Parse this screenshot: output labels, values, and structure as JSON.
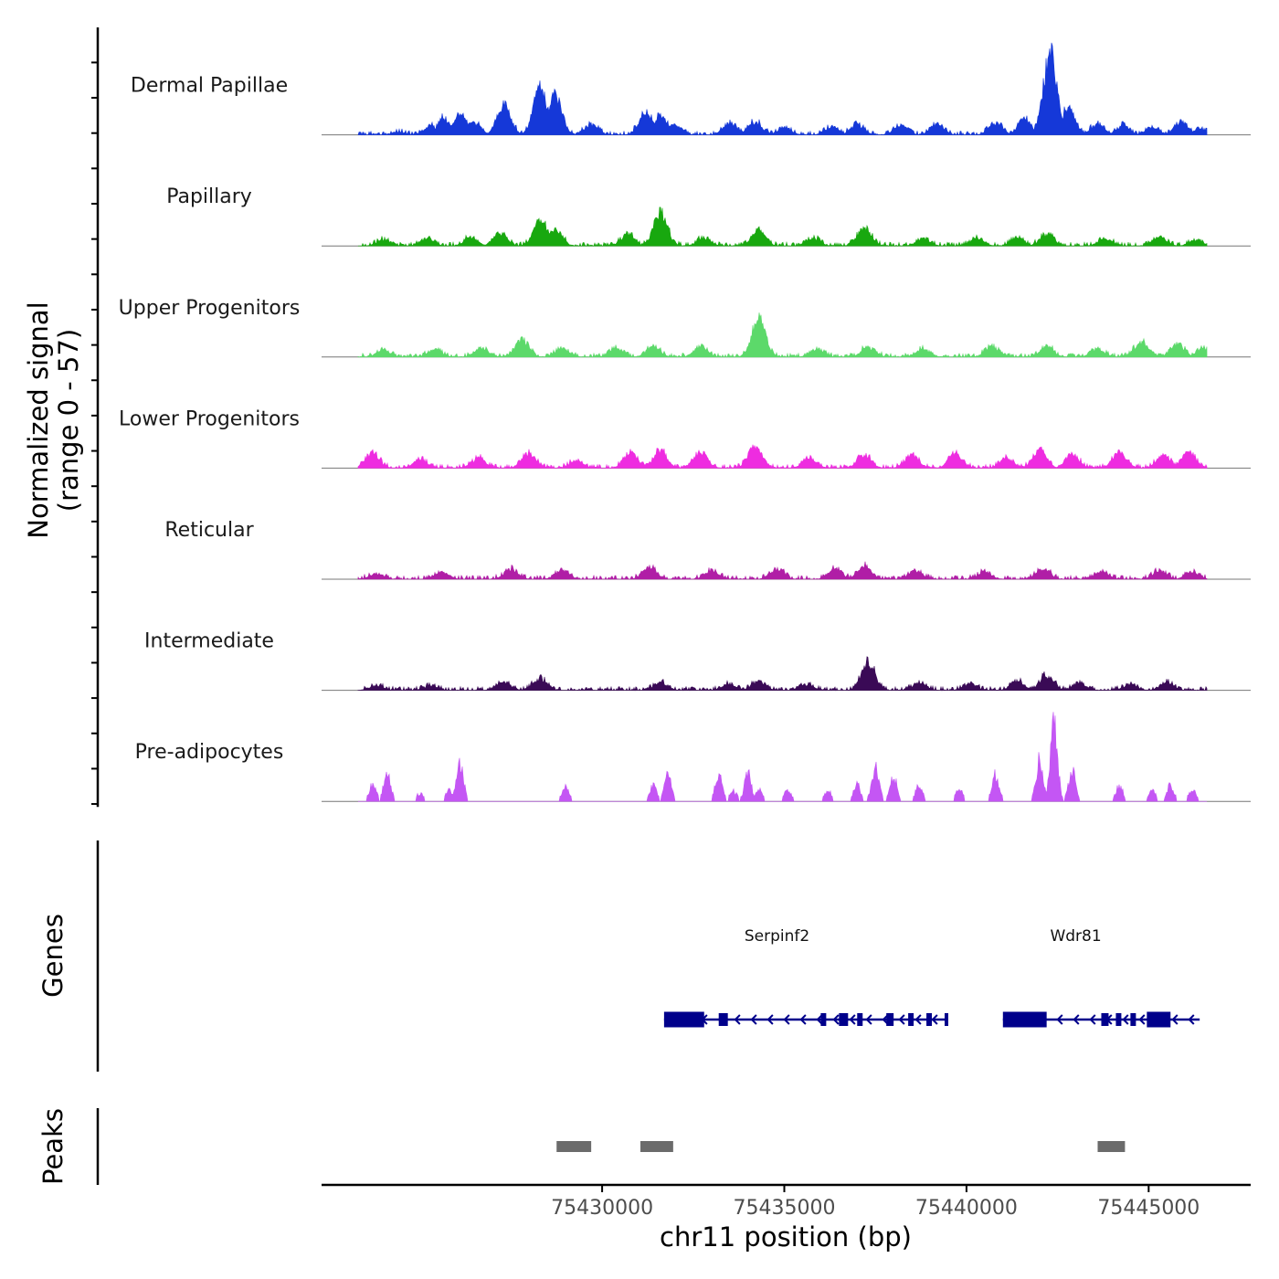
{
  "chart_data": {
    "type": "area",
    "title": "",
    "xlabel": "chr11 position (bp)",
    "ylabel": "Normalized signal",
    "ylabel_sub": "(range 0 - 57)",
    "xlim": [
      75422300,
      75447800
    ],
    "x_ticks": [
      75430000,
      75435000,
      75440000,
      75445000
    ],
    "x_tick_labels": [
      "75430000",
      "75435000",
      "75440000",
      "75445000"
    ],
    "ylim": [
      0,
      57
    ],
    "coverage_start": 75423300,
    "coverage_end": 75446600,
    "tracks": [
      {
        "name": "Dermal Papillae",
        "color": "#1538d8",
        "peaks": [
          {
            "pos": 75424400,
            "h": 2
          },
          {
            "pos": 75425300,
            "h": 6
          },
          {
            "pos": 75425650,
            "h": 11
          },
          {
            "pos": 75426100,
            "h": 13
          },
          {
            "pos": 75426500,
            "h": 8
          },
          {
            "pos": 75427300,
            "h": 21
          },
          {
            "pos": 75428300,
            "h": 33
          },
          {
            "pos": 75428700,
            "h": 29
          },
          {
            "pos": 75429700,
            "h": 7
          },
          {
            "pos": 75431200,
            "h": 16
          },
          {
            "pos": 75431600,
            "h": 13
          },
          {
            "pos": 75432000,
            "h": 7
          },
          {
            "pos": 75433500,
            "h": 8
          },
          {
            "pos": 75434200,
            "h": 9
          },
          {
            "pos": 75435000,
            "h": 5
          },
          {
            "pos": 75436300,
            "h": 5
          },
          {
            "pos": 75437000,
            "h": 7
          },
          {
            "pos": 75438200,
            "h": 6
          },
          {
            "pos": 75439200,
            "h": 7
          },
          {
            "pos": 75440800,
            "h": 8
          },
          {
            "pos": 75441600,
            "h": 11
          },
          {
            "pos": 75442300,
            "h": 57
          },
          {
            "pos": 75442800,
            "h": 18
          },
          {
            "pos": 75443600,
            "h": 7
          },
          {
            "pos": 75444300,
            "h": 6
          },
          {
            "pos": 75445100,
            "h": 5
          },
          {
            "pos": 75445900,
            "h": 9
          },
          {
            "pos": 75446400,
            "h": 4
          }
        ]
      },
      {
        "name": "Papillary",
        "color": "#18a80f",
        "peaks": [
          {
            "pos": 75424000,
            "h": 4
          },
          {
            "pos": 75425200,
            "h": 5
          },
          {
            "pos": 75426400,
            "h": 6
          },
          {
            "pos": 75427200,
            "h": 9
          },
          {
            "pos": 75428300,
            "h": 18
          },
          {
            "pos": 75428700,
            "h": 12
          },
          {
            "pos": 75430700,
            "h": 8
          },
          {
            "pos": 75431600,
            "h": 24
          },
          {
            "pos": 75432800,
            "h": 5
          },
          {
            "pos": 75434300,
            "h": 10
          },
          {
            "pos": 75435800,
            "h": 5
          },
          {
            "pos": 75437200,
            "h": 13
          },
          {
            "pos": 75438800,
            "h": 5
          },
          {
            "pos": 75440300,
            "h": 5
          },
          {
            "pos": 75441400,
            "h": 5
          },
          {
            "pos": 75442200,
            "h": 8
          },
          {
            "pos": 75443800,
            "h": 5
          },
          {
            "pos": 75445300,
            "h": 6
          },
          {
            "pos": 75446300,
            "h": 4
          }
        ]
      },
      {
        "name": "Upper Progenitors",
        "color": "#5cd96a",
        "peaks": [
          {
            "pos": 75424000,
            "h": 5
          },
          {
            "pos": 75425400,
            "h": 5
          },
          {
            "pos": 75426700,
            "h": 6
          },
          {
            "pos": 75427800,
            "h": 12
          },
          {
            "pos": 75428900,
            "h": 6
          },
          {
            "pos": 75430400,
            "h": 6
          },
          {
            "pos": 75431400,
            "h": 7
          },
          {
            "pos": 75432700,
            "h": 7
          },
          {
            "pos": 75434300,
            "h": 28
          },
          {
            "pos": 75435900,
            "h": 5
          },
          {
            "pos": 75437300,
            "h": 7
          },
          {
            "pos": 75438800,
            "h": 5
          },
          {
            "pos": 75440700,
            "h": 7
          },
          {
            "pos": 75442200,
            "h": 7
          },
          {
            "pos": 75443600,
            "h": 5
          },
          {
            "pos": 75444800,
            "h": 10
          },
          {
            "pos": 75445800,
            "h": 9
          },
          {
            "pos": 75446500,
            "h": 6
          }
        ]
      },
      {
        "name": "Lower Progenitors",
        "color": "#ee2ce0",
        "peaks": [
          {
            "pos": 75423700,
            "h": 11
          },
          {
            "pos": 75425000,
            "h": 6
          },
          {
            "pos": 75426600,
            "h": 7
          },
          {
            "pos": 75428000,
            "h": 10
          },
          {
            "pos": 75429300,
            "h": 5
          },
          {
            "pos": 75430800,
            "h": 11
          },
          {
            "pos": 75431600,
            "h": 12
          },
          {
            "pos": 75432700,
            "h": 11
          },
          {
            "pos": 75434200,
            "h": 16
          },
          {
            "pos": 75435700,
            "h": 7
          },
          {
            "pos": 75437200,
            "h": 9
          },
          {
            "pos": 75438500,
            "h": 9
          },
          {
            "pos": 75439700,
            "h": 10
          },
          {
            "pos": 75441100,
            "h": 7
          },
          {
            "pos": 75442000,
            "h": 12
          },
          {
            "pos": 75442900,
            "h": 10
          },
          {
            "pos": 75444200,
            "h": 11
          },
          {
            "pos": 75445400,
            "h": 9
          },
          {
            "pos": 75446100,
            "h": 11
          }
        ]
      },
      {
        "name": "Reticular",
        "color": "#b01ea6",
        "peaks": [
          {
            "pos": 75423800,
            "h": 4
          },
          {
            "pos": 75425600,
            "h": 5
          },
          {
            "pos": 75427500,
            "h": 7
          },
          {
            "pos": 75428900,
            "h": 6
          },
          {
            "pos": 75431300,
            "h": 8
          },
          {
            "pos": 75433000,
            "h": 6
          },
          {
            "pos": 75434800,
            "h": 7
          },
          {
            "pos": 75436400,
            "h": 7
          },
          {
            "pos": 75437200,
            "h": 9
          },
          {
            "pos": 75438600,
            "h": 6
          },
          {
            "pos": 75440500,
            "h": 5
          },
          {
            "pos": 75442100,
            "h": 7
          },
          {
            "pos": 75443700,
            "h": 5
          },
          {
            "pos": 75445300,
            "h": 6
          },
          {
            "pos": 75446200,
            "h": 5
          }
        ]
      },
      {
        "name": "Intermediate",
        "color": "#3a0a56",
        "peaks": [
          {
            "pos": 75423800,
            "h": 3
          },
          {
            "pos": 75425300,
            "h": 3
          },
          {
            "pos": 75427300,
            "h": 6
          },
          {
            "pos": 75428300,
            "h": 8
          },
          {
            "pos": 75431600,
            "h": 5
          },
          {
            "pos": 75433500,
            "h": 4
          },
          {
            "pos": 75434300,
            "h": 6
          },
          {
            "pos": 75435600,
            "h": 4
          },
          {
            "pos": 75437300,
            "h": 19
          },
          {
            "pos": 75438700,
            "h": 5
          },
          {
            "pos": 75440100,
            "h": 4
          },
          {
            "pos": 75441400,
            "h": 6
          },
          {
            "pos": 75442200,
            "h": 10
          },
          {
            "pos": 75443100,
            "h": 5
          },
          {
            "pos": 75444500,
            "h": 4
          },
          {
            "pos": 75445500,
            "h": 5
          }
        ]
      },
      {
        "name": "Pre-adipocytes",
        "color": "#c456f4",
        "peaks": [
          {
            "pos": 75423700,
            "h": 13
          },
          {
            "pos": 75424100,
            "h": 20
          },
          {
            "pos": 75425000,
            "h": 6
          },
          {
            "pos": 75425800,
            "h": 8
          },
          {
            "pos": 75426100,
            "h": 27
          },
          {
            "pos": 75429000,
            "h": 12
          },
          {
            "pos": 75431400,
            "h": 13
          },
          {
            "pos": 75431800,
            "h": 20
          },
          {
            "pos": 75433200,
            "h": 20
          },
          {
            "pos": 75433600,
            "h": 8
          },
          {
            "pos": 75434000,
            "h": 20
          },
          {
            "pos": 75434300,
            "h": 10
          },
          {
            "pos": 75435100,
            "h": 9
          },
          {
            "pos": 75436200,
            "h": 8
          },
          {
            "pos": 75437000,
            "h": 12
          },
          {
            "pos": 75437500,
            "h": 27
          },
          {
            "pos": 75438000,
            "h": 18
          },
          {
            "pos": 75438700,
            "h": 12
          },
          {
            "pos": 75439800,
            "h": 9
          },
          {
            "pos": 75440800,
            "h": 20
          },
          {
            "pos": 75442000,
            "h": 30
          },
          {
            "pos": 75442400,
            "h": 57
          },
          {
            "pos": 75442900,
            "h": 22
          },
          {
            "pos": 75444200,
            "h": 12
          },
          {
            "pos": 75445100,
            "h": 8
          },
          {
            "pos": 75445600,
            "h": 12
          },
          {
            "pos": 75446200,
            "h": 9
          }
        ]
      }
    ],
    "genes": {
      "panel_label": "Genes",
      "color": "#00008b",
      "items": [
        {
          "name": "Serpinf2",
          "strand": "-",
          "start": 75431700,
          "end": 75439500,
          "label_pos": 75434800,
          "exons": [
            [
              75431700,
              75432800
            ],
            [
              75433200,
              75433450
            ],
            [
              75436000,
              75436150
            ],
            [
              75436500,
              75436750
            ],
            [
              75437000,
              75437150
            ],
            [
              75437800,
              75438000
            ],
            [
              75438400,
              75438550
            ],
            [
              75438900,
              75439050
            ],
            [
              75439400,
              75439500
            ]
          ]
        },
        {
          "name": "Wdr81",
          "strand": "-",
          "start": 75441000,
          "end": 75446400,
          "label_pos": 75443000,
          "exons": [
            [
              75441000,
              75442200
            ],
            [
              75443700,
              75443900
            ],
            [
              75444100,
              75444250
            ],
            [
              75444500,
              75444650
            ],
            [
              75444950,
              75445600
            ]
          ]
        }
      ]
    },
    "peaks_track": {
      "panel_label": "Peaks",
      "color": "#6b6b6b",
      "regions": [
        [
          75428750,
          75429700
        ],
        [
          75431050,
          75431950
        ],
        [
          75443600,
          75444350
        ]
      ]
    }
  }
}
